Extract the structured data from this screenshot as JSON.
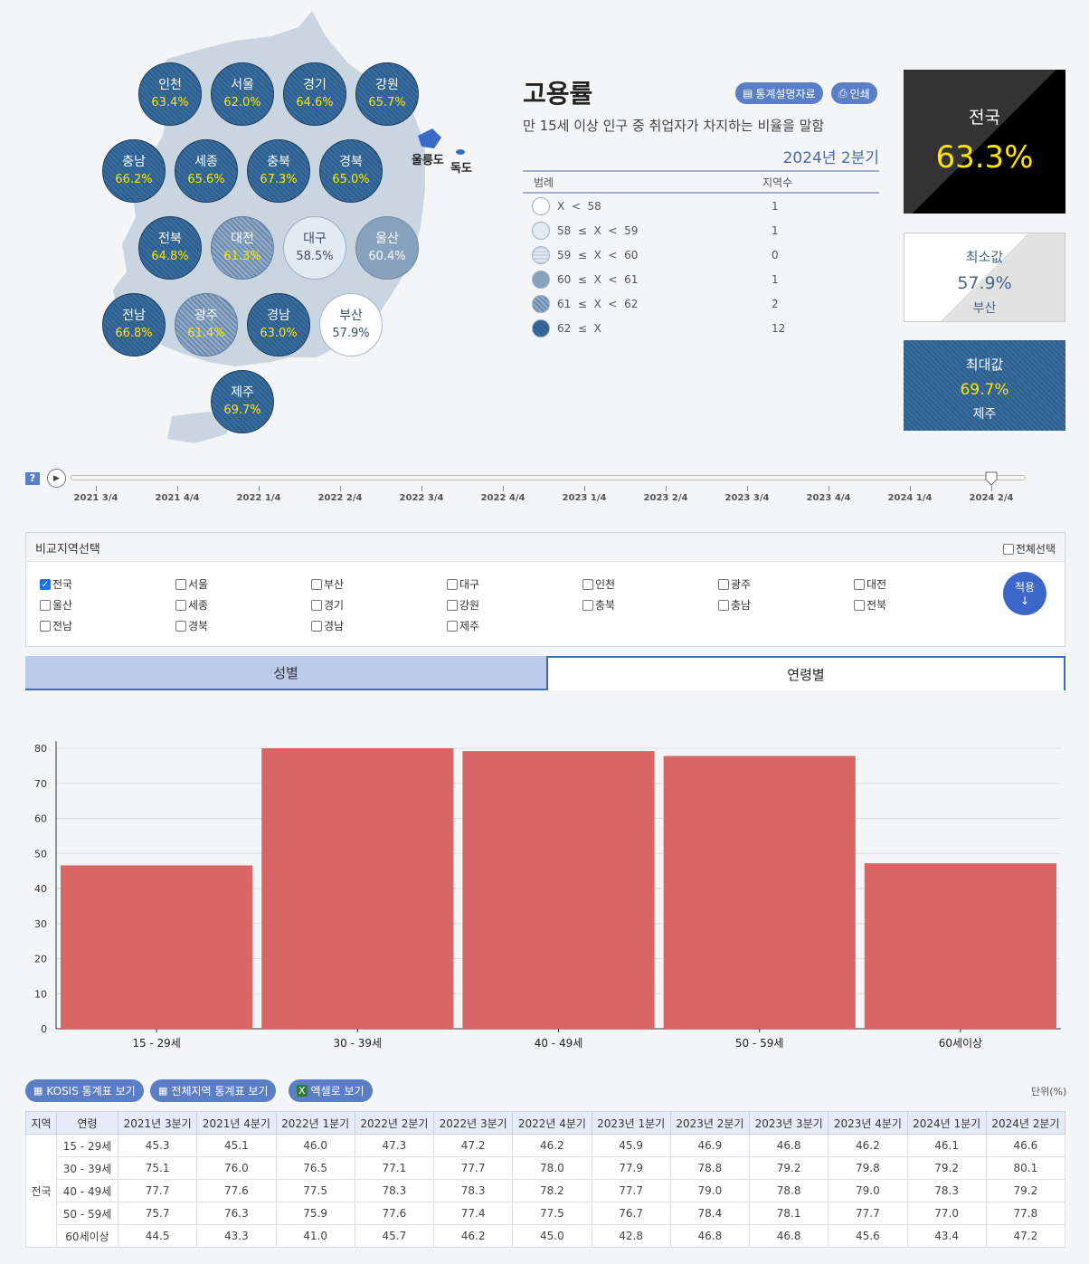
{
  "map": {
    "islands": [
      "울릉도",
      "독도"
    ],
    "regions": [
      {
        "name": "인천",
        "value": "63.4%",
        "level": 5
      },
      {
        "name": "서울",
        "value": "62.0%",
        "level": 5
      },
      {
        "name": "경기",
        "value": "64.6%",
        "level": 5
      },
      {
        "name": "강원",
        "value": "65.7%",
        "level": 5
      },
      {
        "name": "충남",
        "value": "66.2%",
        "level": 5
      },
      {
        "name": "세종",
        "value": "65.6%",
        "level": 5
      },
      {
        "name": "충북",
        "value": "67.3%",
        "level": 5
      },
      {
        "name": "경북",
        "value": "65.0%",
        "level": 5
      },
      {
        "name": "전북",
        "value": "64.8%",
        "level": 5
      },
      {
        "name": "대전",
        "value": "61.3%",
        "level": 4
      },
      {
        "name": "대구",
        "value": "58.5%",
        "level": 1
      },
      {
        "name": "울산",
        "value": "60.4%",
        "level": 3
      },
      {
        "name": "전남",
        "value": "66.8%",
        "level": 5
      },
      {
        "name": "광주",
        "value": "61.4%",
        "level": 4
      },
      {
        "name": "경남",
        "value": "63.0%",
        "level": 5
      },
      {
        "name": "부산",
        "value": "57.9%",
        "level": 0
      },
      {
        "name": "제주",
        "value": "69.7%",
        "level": 5
      }
    ]
  },
  "header": {
    "title": "고용률",
    "desc_button": "통계설명자료",
    "print_button": "인쇄",
    "description": "만 15세 이상 인구 중 취업자가 차지하는 비율을 말함",
    "period": "2024년 2분기"
  },
  "legend": {
    "col_range": "범례",
    "col_count": "지역수",
    "rows": [
      {
        "range": "X  <  58",
        "count": "1"
      },
      {
        "range": "58  ≤  X  <  59",
        "count": "1"
      },
      {
        "range": "59  ≤  X  <  60",
        "count": "0"
      },
      {
        "range": "60  ≤  X  <  61",
        "count": "1"
      },
      {
        "range": "61  ≤  X  <  62",
        "count": "2"
      },
      {
        "range": "62  ≤  X",
        "count": "12"
      }
    ]
  },
  "cards": {
    "national": {
      "label": "전국",
      "value": "63.3%"
    },
    "min": {
      "label": "최소값",
      "value": "57.9%",
      "region": "부산"
    },
    "max": {
      "label": "최대값",
      "value": "69.7%",
      "region": "제주"
    }
  },
  "timeline": {
    "help": "?",
    "labels": [
      "2021 3/4",
      "2021 4/4",
      "2022 1/4",
      "2022 2/4",
      "2022 3/4",
      "2022 4/4",
      "2023 1/4",
      "2023 2/4",
      "2023 3/4",
      "2023 4/4",
      "2024 1/4",
      "2024 2/4"
    ],
    "selected_index": 11
  },
  "compare": {
    "title": "비교지역선택",
    "select_all": "전체선택",
    "apply": "적용",
    "apply_arrow": "↓",
    "options": [
      {
        "label": "전국",
        "checked": true
      },
      {
        "label": "서울",
        "checked": false
      },
      {
        "label": "부산",
        "checked": false
      },
      {
        "label": "대구",
        "checked": false
      },
      {
        "label": "인천",
        "checked": false
      },
      {
        "label": "광주",
        "checked": false
      },
      {
        "label": "대전",
        "checked": false
      },
      {
        "label": "울산",
        "checked": false
      },
      {
        "label": "세종",
        "checked": false
      },
      {
        "label": "경기",
        "checked": false
      },
      {
        "label": "강원",
        "checked": false
      },
      {
        "label": "충북",
        "checked": false
      },
      {
        "label": "충남",
        "checked": false
      },
      {
        "label": "전북",
        "checked": false
      },
      {
        "label": "전남",
        "checked": false
      },
      {
        "label": "경북",
        "checked": false
      },
      {
        "label": "경남",
        "checked": false
      },
      {
        "label": "제주",
        "checked": false
      }
    ]
  },
  "tabs": {
    "sex": "성별",
    "age": "연령별",
    "active": "age"
  },
  "chart_data": {
    "type": "bar",
    "categories": [
      "15 - 29세",
      "30 - 39세",
      "40 - 49세",
      "50 - 59세",
      "60세이상"
    ],
    "values": [
      46.6,
      80.1,
      79.2,
      77.8,
      47.2
    ],
    "ylim": [
      0,
      80
    ],
    "yticks": [
      0,
      10,
      20,
      30,
      40,
      50,
      60,
      70,
      80
    ],
    "color": "#d96666",
    "grid": true
  },
  "buttons": {
    "kosis": "KOSIS 통계표 보기",
    "all_regions": "전체지역 통계표 보기",
    "excel": "엑셀로 보기"
  },
  "unit": "단위(%)",
  "table": {
    "headers": [
      "지역",
      "연령",
      "2021년 3분기",
      "2021년 4분기",
      "2022년 1분기",
      "2022년 2분기",
      "2022년 3분기",
      "2022년 4분기",
      "2023년 1분기",
      "2023년 2분기",
      "2023년 3분기",
      "2023년 4분기",
      "2024년 1분기",
      "2024년 2분기"
    ],
    "region": "전국",
    "rows": [
      {
        "age": "15 - 29세",
        "values": [
          "45.3",
          "45.1",
          "46.0",
          "47.3",
          "47.2",
          "46.2",
          "45.9",
          "46.9",
          "46.8",
          "46.2",
          "46.1",
          "46.6"
        ]
      },
      {
        "age": "30 - 39세",
        "values": [
          "75.1",
          "76.0",
          "76.5",
          "77.1",
          "77.7",
          "78.0",
          "77.9",
          "78.8",
          "79.2",
          "79.8",
          "79.2",
          "80.1"
        ]
      },
      {
        "age": "40 - 49세",
        "values": [
          "77.7",
          "77.6",
          "77.5",
          "78.3",
          "78.3",
          "78.2",
          "77.7",
          "79.0",
          "78.8",
          "79.0",
          "78.3",
          "79.2"
        ]
      },
      {
        "age": "50 - 59세",
        "values": [
          "75.7",
          "76.3",
          "75.9",
          "77.6",
          "77.4",
          "77.5",
          "76.7",
          "78.4",
          "78.1",
          "77.7",
          "77.0",
          "77.8"
        ]
      },
      {
        "age": "60세이상",
        "values": [
          "44.5",
          "43.3",
          "41.0",
          "45.7",
          "46.2",
          "45.0",
          "42.8",
          "46.8",
          "46.8",
          "45.6",
          "43.4",
          "47.2"
        ]
      }
    ]
  }
}
